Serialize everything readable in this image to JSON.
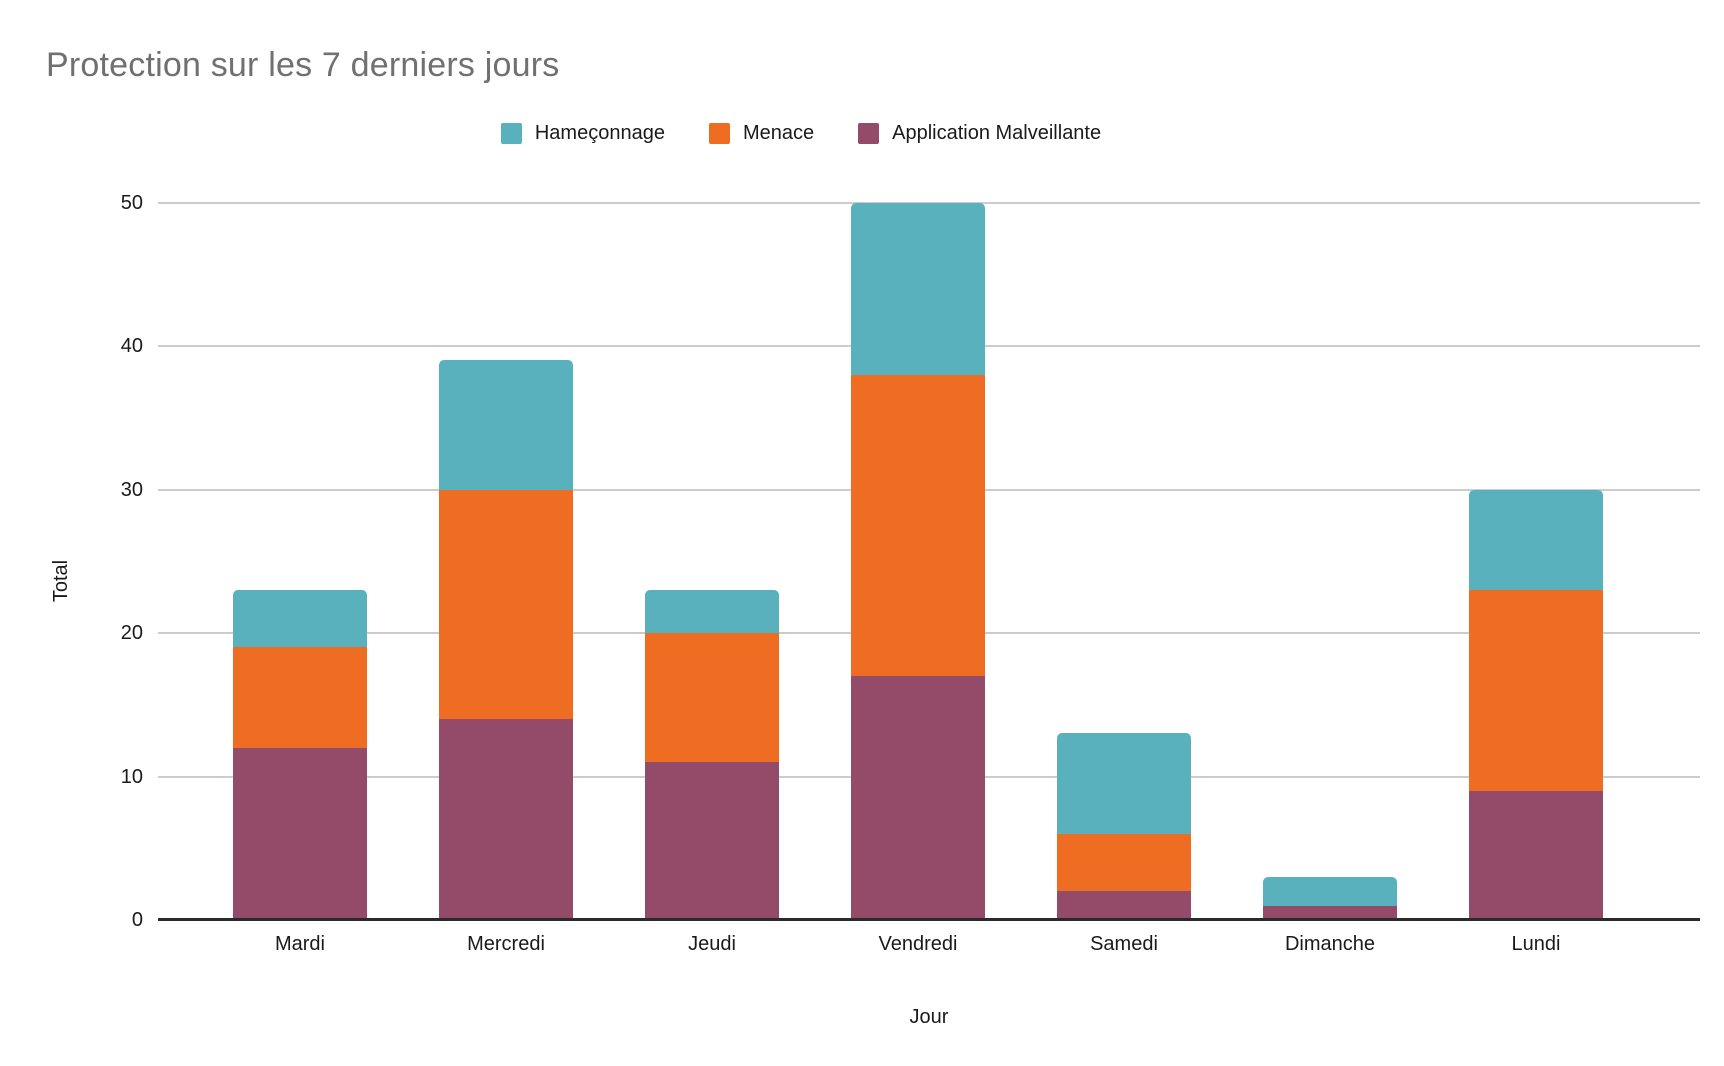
{
  "title": "Protection sur les 7 derniers jours",
  "chart_data": {
    "type": "bar",
    "stacked": true,
    "title": "Protection sur les 7 derniers jours",
    "xlabel": "Jour",
    "ylabel": "Total",
    "categories": [
      "Mardi",
      "Mercredi",
      "Jeudi",
      "Vendredi",
      "Samedi",
      "Dimanche",
      "Lundi"
    ],
    "series": [
      {
        "name": "Hameçonnage",
        "color": "#5AB1BE",
        "values": [
          4,
          9,
          3,
          12,
          7,
          2,
          7
        ]
      },
      {
        "name": "Menace",
        "color": "#EE6D22",
        "values": [
          7,
          16,
          9,
          21,
          4,
          0,
          14
        ]
      },
      {
        "name": "Application Malveillante",
        "color": "#944A69",
        "values": [
          12,
          14,
          11,
          17,
          2,
          1,
          9
        ]
      }
    ],
    "stack_order_bottom_to_top": [
      "Application Malveillante",
      "Menace",
      "Hameçonnage"
    ],
    "totals": [
      23,
      39,
      23,
      50,
      13,
      3,
      30
    ],
    "ylim": [
      0,
      50
    ],
    "yticks": [
      0,
      10,
      20,
      30,
      40,
      50
    ],
    "grid": true,
    "legend_position": "top"
  },
  "colors": {
    "background": "#ffffff",
    "title_text": "#707070",
    "axis_text": "#1a1a1a",
    "gridline": "#cccccc",
    "axis_line": "#2a2a2a",
    "hameconnage": "#5AB1BE",
    "menace": "#EE6D22",
    "application_malveillante": "#944A69"
  }
}
